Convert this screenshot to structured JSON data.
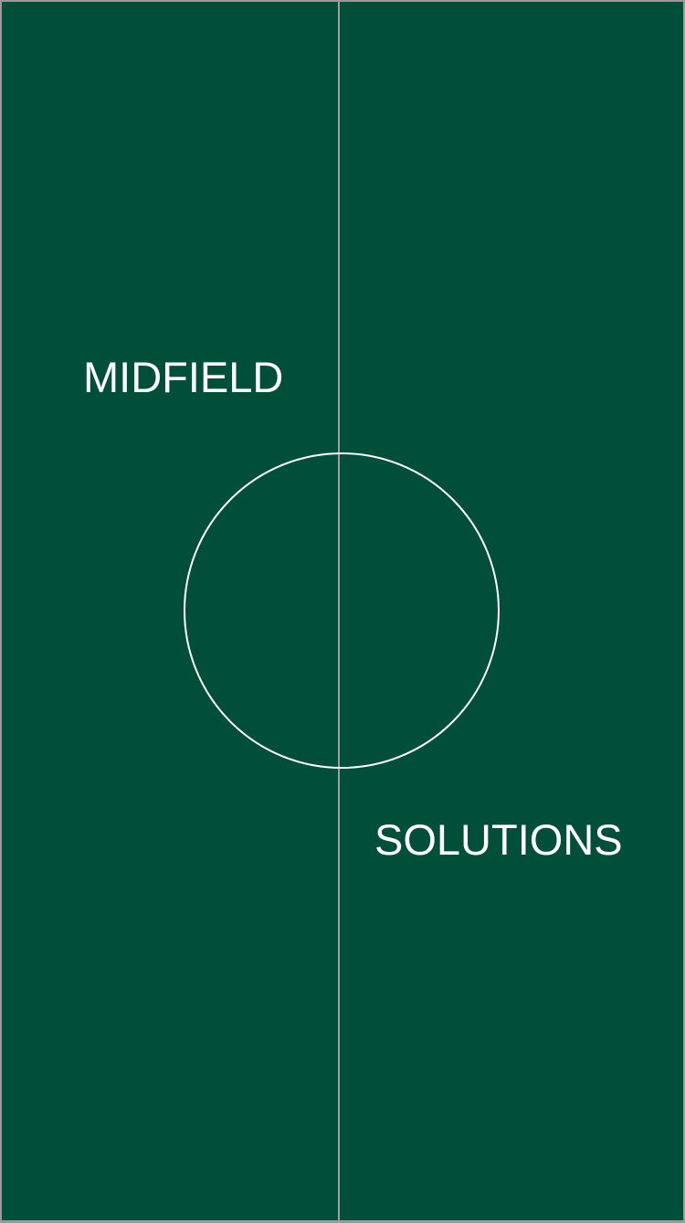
{
  "splash": {
    "brand_line_1": "MIDFIELD",
    "brand_line_2": "SOLUTIONS"
  },
  "colors": {
    "background": "#014f39",
    "halfway_line": "#9e9e9e",
    "circle": "#ffffff",
    "text": "#ffffff",
    "frame_border": "#9a9a9a"
  }
}
